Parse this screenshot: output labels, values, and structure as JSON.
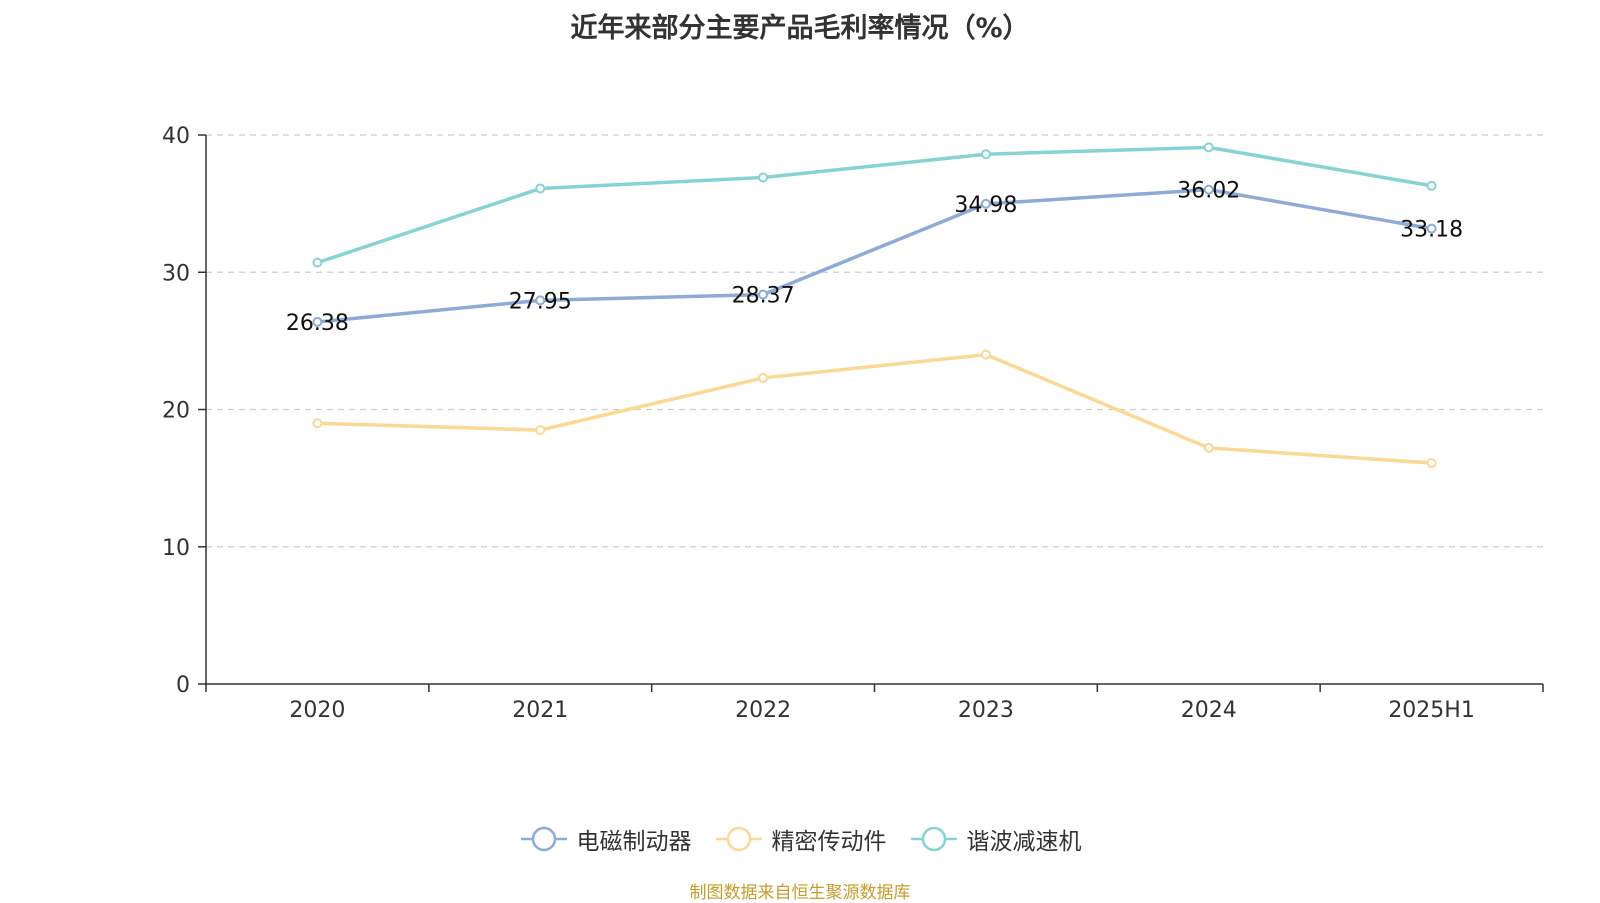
{
  "chart_data": {
    "type": "line",
    "title": "近年来部分主要产品毛利率情况（%）",
    "categories": [
      "2020",
      "2021",
      "2022",
      "2023",
      "2024",
      "2025H1"
    ],
    "ylim": [
      0,
      40
    ],
    "yticks": [
      0,
      10,
      20,
      30,
      40
    ],
    "grid": true,
    "legend_position": "bottom",
    "series": [
      {
        "name": "电磁制动器",
        "color": "#8eaad6",
        "values": [
          26.38,
          27.95,
          28.37,
          34.98,
          36.02,
          33.18
        ],
        "labels": [
          "26.38",
          "27.95",
          "28.37",
          "34.98",
          "36.02",
          "33.18"
        ]
      },
      {
        "name": "精密传动件",
        "color": "#fbd893",
        "values": [
          19.0,
          18.5,
          22.3,
          24.0,
          17.2,
          16.1
        ]
      },
      {
        "name": "谐波减速机",
        "color": "#86d3d3",
        "values": [
          30.7,
          36.1,
          36.9,
          38.6,
          39.1,
          36.3
        ]
      }
    ]
  },
  "source": "制图数据来自恒生聚源数据库"
}
